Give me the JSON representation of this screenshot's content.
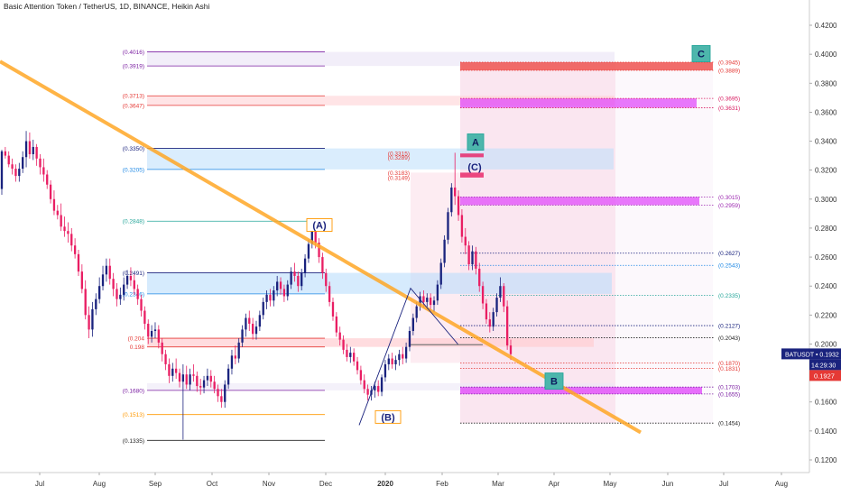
{
  "title": "Basic Attention Token / TetherUS, 1D, BINANCE, Heikin Ashi",
  "price_badge": {
    "label": "BATUSDT",
    "value": "0.1932",
    "time": "14:29:30",
    "last": "0.1927"
  },
  "colors": {
    "up": "#1a237e",
    "down": "#e91e63",
    "trend": "#ffa726",
    "accent_box": "#4db6ac"
  },
  "chart_data": {
    "type": "candlestick",
    "y_ticks": [
      "0.1200",
      "0.1400",
      "0.1600",
      "0.1800",
      "0.2000",
      "0.2200",
      "0.2400",
      "0.2600",
      "0.2800",
      "0.3000",
      "0.3200",
      "0.3400",
      "0.3600",
      "0.3800",
      "0.4000",
      "0.4200"
    ],
    "x_ticks": [
      "Jul",
      "Aug",
      "Sep",
      "Oct",
      "Nov",
      "Dec",
      "2020",
      "Feb",
      "Mar",
      "Apr",
      "May",
      "Jun",
      "Jul",
      "Aug"
    ],
    "ylim": [
      0.11,
      0.435
    ],
    "left_levels": [
      {
        "label": "(0.4016)",
        "value": 0.4016,
        "color": "#7b1fa2"
      },
      {
        "label": "(0.3919)",
        "value": 0.3919,
        "color": "#7b1fa2"
      },
      {
        "label": "(0.3713)",
        "value": 0.3713,
        "color": "#e53935"
      },
      {
        "label": "(0.3647)",
        "value": 0.3647,
        "color": "#e53935"
      },
      {
        "label": "(0.3350)",
        "value": 0.335,
        "color": "#1a237e"
      },
      {
        "label": "(0.3205)",
        "value": 0.3205,
        "color": "#1e88e5"
      },
      {
        "label": "(0.2848)",
        "value": 0.2848,
        "color": "#26a69a"
      },
      {
        "label": "(0.2491)",
        "value": 0.2491,
        "color": "#1a237e"
      },
      {
        "label": "(0.2346)",
        "value": 0.2346,
        "color": "#1e88e5"
      },
      {
        "label": "(0.204",
        "value": 0.204,
        "color": "#e53935"
      },
      {
        "label": "0.198",
        "value": 0.198,
        "color": "#e53935"
      },
      {
        "label": "(0.1680)",
        "value": 0.168,
        "color": "#7b1fa2"
      },
      {
        "label": "(0.1513)",
        "value": 0.1513,
        "color": "#ff9800"
      },
      {
        "label": "(0.1335)",
        "value": 0.1335,
        "color": "#222222"
      }
    ],
    "mid_levels": [
      {
        "label": "(0.3315)",
        "value": 0.3315,
        "color": "#e53935"
      },
      {
        "label": "(0.3289)",
        "value": 0.3289,
        "color": "#e53935"
      },
      {
        "label": "(0.3183)",
        "value": 0.3183,
        "color": "#e53935"
      },
      {
        "label": "(0.3149)",
        "value": 0.3149,
        "color": "#e53935"
      }
    ],
    "right_levels": [
      {
        "label": "(0.3945)",
        "value": 0.3945,
        "color": "#e53935"
      },
      {
        "label": "(0.3889)",
        "value": 0.3889,
        "color": "#e53935"
      },
      {
        "label": "(0.3695)",
        "value": 0.3695,
        "color": "#d81b60"
      },
      {
        "label": "(0.3631)",
        "value": 0.3631,
        "color": "#d81b60"
      },
      {
        "label": "(0.3015)",
        "value": 0.3015,
        "color": "#9c27b0"
      },
      {
        "label": "(0.2959)",
        "value": 0.2959,
        "color": "#9c27b0"
      },
      {
        "label": "(0.2627)",
        "value": 0.2627,
        "color": "#1a237e"
      },
      {
        "label": "(0.2543)",
        "value": 0.2543,
        "color": "#1e88e5"
      },
      {
        "label": "(0.2335)",
        "value": 0.2335,
        "color": "#26a69a"
      },
      {
        "label": "(0.2127)",
        "value": 0.2127,
        "color": "#1a237e"
      },
      {
        "label": "(0.2043)",
        "value": 0.2043,
        "color": "#222222"
      },
      {
        "label": "(0.1870)",
        "value": 0.187,
        "color": "#e53935"
      },
      {
        "label": "(0.1831)",
        "value": 0.1831,
        "color": "#e53935"
      },
      {
        "label": "(0.1703)",
        "value": 0.1703,
        "color": "#7b1fa2"
      },
      {
        "label": "(0.1655)",
        "value": 0.1655,
        "color": "#7b1fa2"
      },
      {
        "label": "(0.1454)",
        "value": 0.1454,
        "color": "#222222"
      }
    ],
    "wave_labels": [
      {
        "text": "(A)",
        "value": 0.279
      },
      {
        "text": "(B)",
        "value": 0.1485
      },
      {
        "text": "A",
        "value": 0.336
      },
      {
        "text": "(C)",
        "value": 0.323
      },
      {
        "text": "B",
        "value": 0.172
      },
      {
        "text": "C",
        "value": 0.399
      }
    ],
    "ohlc": [
      [
        0.307,
        0.334,
        0.303,
        0.333
      ],
      [
        0.333,
        0.336,
        0.328,
        0.33
      ],
      [
        0.33,
        0.333,
        0.322,
        0.324
      ],
      [
        0.324,
        0.328,
        0.317,
        0.321
      ],
      [
        0.321,
        0.324,
        0.312,
        0.316
      ],
      [
        0.316,
        0.325,
        0.312,
        0.321
      ],
      [
        0.321,
        0.333,
        0.318,
        0.329
      ],
      [
        0.329,
        0.347,
        0.322,
        0.34
      ],
      [
        0.34,
        0.346,
        0.328,
        0.331
      ],
      [
        0.331,
        0.341,
        0.327,
        0.336
      ],
      [
        0.336,
        0.338,
        0.323,
        0.328
      ],
      [
        0.328,
        0.331,
        0.317,
        0.322
      ],
      [
        0.322,
        0.328,
        0.312,
        0.317
      ],
      [
        0.317,
        0.32,
        0.307,
        0.31
      ],
      [
        0.31,
        0.313,
        0.297,
        0.3
      ],
      [
        0.3,
        0.306,
        0.289,
        0.292
      ],
      [
        0.292,
        0.296,
        0.286,
        0.289
      ],
      [
        0.289,
        0.297,
        0.278,
        0.281
      ],
      [
        0.281,
        0.288,
        0.274,
        0.278
      ],
      [
        0.278,
        0.284,
        0.27,
        0.276
      ],
      [
        0.276,
        0.28,
        0.264,
        0.268
      ],
      [
        0.268,
        0.273,
        0.259,
        0.262
      ],
      [
        0.262,
        0.265,
        0.247,
        0.25
      ],
      [
        0.25,
        0.255,
        0.235,
        0.238
      ],
      [
        0.238,
        0.244,
        0.217,
        0.22
      ],
      [
        0.22,
        0.226,
        0.204,
        0.21
      ],
      [
        0.21,
        0.229,
        0.205,
        0.224
      ],
      [
        0.224,
        0.235,
        0.22,
        0.231
      ],
      [
        0.231,
        0.246,
        0.228,
        0.24
      ],
      [
        0.24,
        0.254,
        0.237,
        0.248
      ],
      [
        0.248,
        0.259,
        0.243,
        0.254
      ],
      [
        0.254,
        0.259,
        0.241,
        0.245
      ],
      [
        0.245,
        0.249,
        0.233,
        0.238
      ],
      [
        0.238,
        0.242,
        0.226,
        0.231
      ],
      [
        0.231,
        0.239,
        0.227,
        0.234
      ],
      [
        0.234,
        0.246,
        0.23,
        0.241
      ],
      [
        0.241,
        0.251,
        0.238,
        0.247
      ],
      [
        0.247,
        0.253,
        0.24,
        0.244
      ],
      [
        0.244,
        0.248,
        0.234,
        0.238
      ],
      [
        0.238,
        0.241,
        0.227,
        0.231
      ],
      [
        0.231,
        0.234,
        0.219,
        0.223
      ],
      [
        0.223,
        0.226,
        0.21,
        0.214
      ],
      [
        0.214,
        0.217,
        0.2,
        0.205
      ],
      [
        0.205,
        0.213,
        0.201,
        0.209
      ],
      [
        0.209,
        0.215,
        0.204,
        0.21
      ],
      [
        0.21,
        0.213,
        0.197,
        0.201
      ],
      [
        0.201,
        0.204,
        0.188,
        0.193
      ],
      [
        0.193,
        0.196,
        0.182,
        0.186
      ],
      [
        0.186,
        0.19,
        0.173,
        0.178
      ],
      [
        0.178,
        0.187,
        0.174,
        0.183
      ],
      [
        0.183,
        0.19,
        0.176,
        0.18
      ],
      [
        0.18,
        0.183,
        0.17,
        0.174
      ],
      [
        0.174,
        0.186,
        0.134,
        0.179
      ],
      [
        0.179,
        0.185,
        0.169,
        0.172
      ],
      [
        0.172,
        0.183,
        0.168,
        0.179
      ],
      [
        0.179,
        0.186,
        0.174,
        0.178
      ],
      [
        0.178,
        0.181,
        0.167,
        0.171
      ],
      [
        0.171,
        0.176,
        0.165,
        0.17
      ],
      [
        0.17,
        0.178,
        0.166,
        0.175
      ],
      [
        0.175,
        0.183,
        0.171,
        0.178
      ],
      [
        0.178,
        0.182,
        0.17,
        0.174
      ],
      [
        0.174,
        0.178,
        0.166,
        0.169
      ],
      [
        0.169,
        0.172,
        0.16,
        0.164
      ],
      [
        0.164,
        0.169,
        0.156,
        0.16
      ],
      [
        0.16,
        0.175,
        0.156,
        0.172
      ],
      [
        0.172,
        0.186,
        0.169,
        0.183
      ],
      [
        0.183,
        0.196,
        0.179,
        0.192
      ],
      [
        0.192,
        0.199,
        0.186,
        0.19
      ],
      [
        0.19,
        0.204,
        0.187,
        0.201
      ],
      [
        0.201,
        0.213,
        0.198,
        0.21
      ],
      [
        0.21,
        0.221,
        0.205,
        0.218
      ],
      [
        0.218,
        0.223,
        0.209,
        0.214
      ],
      [
        0.214,
        0.218,
        0.203,
        0.207
      ],
      [
        0.207,
        0.216,
        0.203,
        0.212
      ],
      [
        0.212,
        0.223,
        0.209,
        0.22
      ],
      [
        0.22,
        0.232,
        0.217,
        0.229
      ],
      [
        0.229,
        0.237,
        0.224,
        0.234
      ],
      [
        0.234,
        0.238,
        0.226,
        0.23
      ],
      [
        0.23,
        0.24,
        0.226,
        0.237
      ],
      [
        0.237,
        0.247,
        0.233,
        0.243
      ],
      [
        0.243,
        0.246,
        0.234,
        0.238
      ],
      [
        0.238,
        0.241,
        0.229,
        0.233
      ],
      [
        0.233,
        0.244,
        0.23,
        0.241
      ],
      [
        0.241,
        0.253,
        0.238,
        0.25
      ],
      [
        0.25,
        0.256,
        0.243,
        0.247
      ],
      [
        0.247,
        0.25,
        0.236,
        0.24
      ],
      [
        0.24,
        0.252,
        0.237,
        0.249
      ],
      [
        0.249,
        0.262,
        0.246,
        0.259
      ],
      [
        0.259,
        0.272,
        0.256,
        0.269
      ],
      [
        0.269,
        0.281,
        0.266,
        0.278
      ],
      [
        0.278,
        0.281,
        0.266,
        0.27
      ],
      [
        0.27,
        0.273,
        0.256,
        0.26
      ],
      [
        0.26,
        0.263,
        0.245,
        0.249
      ],
      [
        0.249,
        0.252,
        0.236,
        0.24
      ],
      [
        0.24,
        0.243,
        0.226,
        0.229
      ],
      [
        0.229,
        0.232,
        0.216,
        0.219
      ],
      [
        0.219,
        0.222,
        0.205,
        0.208
      ],
      [
        0.208,
        0.212,
        0.199,
        0.203
      ],
      [
        0.203,
        0.206,
        0.193,
        0.196
      ],
      [
        0.196,
        0.2,
        0.188,
        0.191
      ],
      [
        0.191,
        0.198,
        0.187,
        0.194
      ],
      [
        0.194,
        0.197,
        0.185,
        0.188
      ],
      [
        0.188,
        0.191,
        0.179,
        0.182
      ],
      [
        0.182,
        0.185,
        0.172,
        0.175
      ],
      [
        0.175,
        0.179,
        0.166,
        0.169
      ],
      [
        0.169,
        0.172,
        0.161,
        0.165
      ],
      [
        0.165,
        0.171,
        0.161,
        0.168
      ],
      [
        0.168,
        0.174,
        0.163,
        0.171
      ],
      [
        0.171,
        0.175,
        0.164,
        0.167
      ],
      [
        0.167,
        0.179,
        0.164,
        0.177
      ],
      [
        0.177,
        0.189,
        0.174,
        0.186
      ],
      [
        0.186,
        0.193,
        0.182,
        0.19
      ],
      [
        0.19,
        0.194,
        0.183,
        0.186
      ],
      [
        0.186,
        0.192,
        0.182,
        0.189
      ],
      [
        0.189,
        0.196,
        0.185,
        0.193
      ],
      [
        0.193,
        0.198,
        0.186,
        0.19
      ],
      [
        0.19,
        0.201,
        0.187,
        0.198
      ],
      [
        0.198,
        0.212,
        0.195,
        0.209
      ],
      [
        0.209,
        0.221,
        0.206,
        0.218
      ],
      [
        0.218,
        0.229,
        0.215,
        0.226
      ],
      [
        0.226,
        0.236,
        0.223,
        0.233
      ],
      [
        0.233,
        0.237,
        0.225,
        0.229
      ],
      [
        0.229,
        0.235,
        0.224,
        0.232
      ],
      [
        0.232,
        0.235,
        0.223,
        0.227
      ],
      [
        0.227,
        0.233,
        0.222,
        0.23
      ],
      [
        0.23,
        0.244,
        0.227,
        0.241
      ],
      [
        0.241,
        0.259,
        0.238,
        0.256
      ],
      [
        0.256,
        0.275,
        0.253,
        0.272
      ],
      [
        0.272,
        0.294,
        0.269,
        0.291
      ],
      [
        0.291,
        0.311,
        0.288,
        0.308
      ],
      [
        0.308,
        0.332,
        0.296,
        0.302
      ],
      [
        0.302,
        0.306,
        0.285,
        0.289
      ],
      [
        0.289,
        0.293,
        0.27,
        0.274
      ],
      [
        0.274,
        0.28,
        0.262,
        0.268
      ],
      [
        0.268,
        0.271,
        0.251,
        0.255
      ],
      [
        0.255,
        0.268,
        0.251,
        0.264
      ],
      [
        0.264,
        0.267,
        0.248,
        0.252
      ],
      [
        0.252,
        0.256,
        0.236,
        0.24
      ],
      [
        0.24,
        0.243,
        0.224,
        0.228
      ],
      [
        0.228,
        0.231,
        0.214,
        0.217
      ],
      [
        0.217,
        0.222,
        0.208,
        0.212
      ],
      [
        0.212,
        0.225,
        0.209,
        0.222
      ],
      [
        0.222,
        0.235,
        0.219,
        0.232
      ],
      [
        0.232,
        0.246,
        0.229,
        0.24
      ],
      [
        0.24,
        0.242,
        0.222,
        0.226
      ],
      [
        0.226,
        0.23,
        0.196,
        0.199
      ],
      [
        0.199,
        0.203,
        0.189,
        0.193
      ]
    ]
  }
}
